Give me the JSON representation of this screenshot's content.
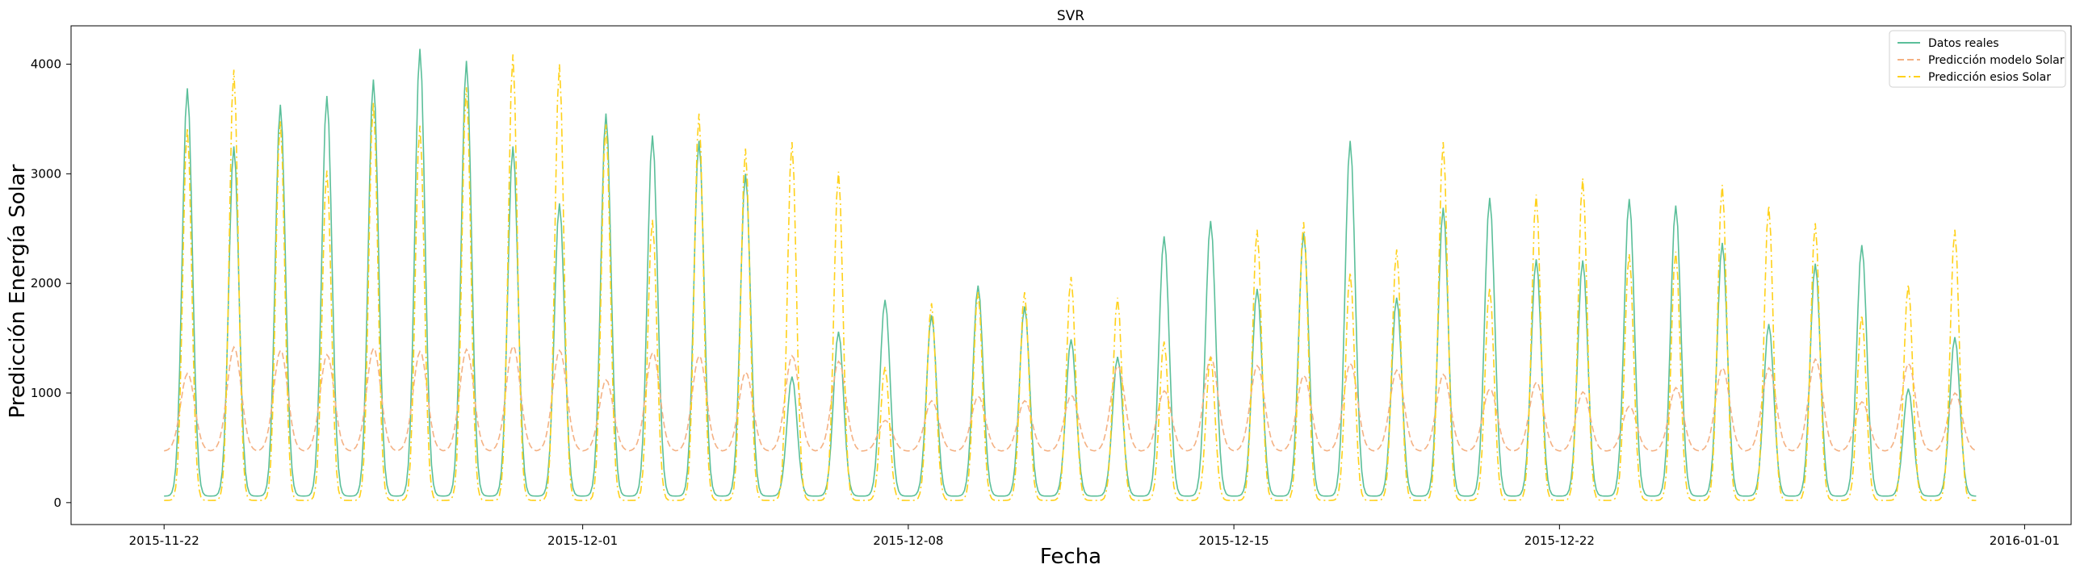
{
  "chart_data": {
    "type": "line",
    "title": "SVR",
    "xlabel": "Fecha",
    "ylabel": "Predicción Energía Solar",
    "x_start": "2015-11-22",
    "x_end": "2015-12-30",
    "xlim": [
      "2015-11-20",
      "2016-01-02"
    ],
    "ylim": [
      -200,
      4350
    ],
    "x_ticks": [
      "2015-11-22",
      "2015-12-01",
      "2015-12-08",
      "2015-12-15",
      "2015-12-22",
      "2016-01-01"
    ],
    "y_ticks": [
      0,
      1000,
      2000,
      3000,
      4000
    ],
    "legend_position": "top-right",
    "grid": false,
    "series": [
      {
        "name": "Datos reales",
        "color": "#5bbf9a",
        "style": "solid",
        "daily_peaks": [
          3780,
          3250,
          3630,
          3710,
          3860,
          4140,
          4030,
          3250,
          2730,
          3550,
          3350,
          3300,
          3000,
          1150,
          1560,
          1850,
          1710,
          1980,
          1790,
          1490,
          1330,
          2430,
          2570,
          1950,
          2460,
          3300,
          1870,
          2690,
          2780,
          2220,
          2210,
          2770,
          2710,
          2370,
          1630,
          2180,
          2350,
          1040,
          1510
        ]
      },
      {
        "name": "Predicción modelo Solar",
        "color": "#f4b183",
        "style": "dashed",
        "daily_peaks": [
          1180,
          1420,
          1390,
          1350,
          1410,
          1380,
          1400,
          1430,
          1390,
          1120,
          1370,
          1340,
          1190,
          1340,
          1290,
          750,
          930,
          970,
          930,
          980,
          1250,
          1020,
          1330,
          1250,
          1160,
          1270,
          1210,
          1170,
          1040,
          1100,
          1010,
          880,
          1050,
          1230,
          1230,
          1310,
          920,
          1270,
          1000
        ]
      },
      {
        "name": "Predicción esios Solar",
        "color": "#ffd11a",
        "style": "dashdot",
        "daily_peaks": [
          3420,
          3950,
          3480,
          3030,
          3650,
          3440,
          3790,
          4090,
          4000,
          3450,
          2580,
          3550,
          3230,
          3290,
          3020,
          1240,
          1820,
          1920,
          1920,
          2060,
          1870,
          1470,
          1330,
          2490,
          2560,
          2100,
          2310,
          3290,
          1960,
          2810,
          2960,
          2270,
          2290,
          2900,
          2710,
          2550,
          1710,
          1990,
          2490
        ]
      }
    ]
  }
}
